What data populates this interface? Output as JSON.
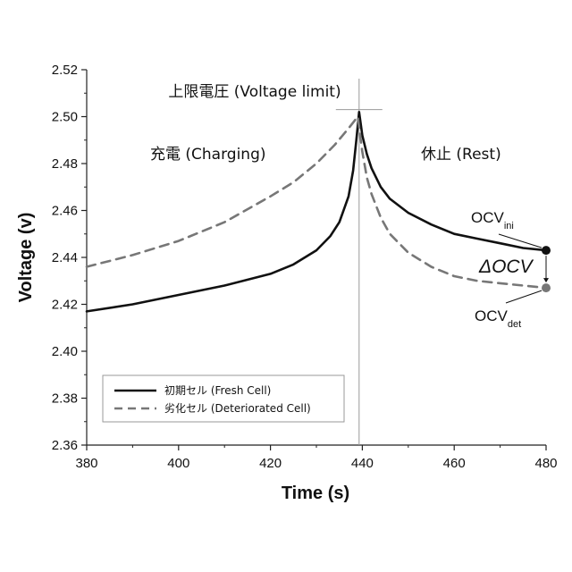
{
  "chart_data": {
    "type": "line",
    "xlabel": "Time (s)",
    "ylabel": "Voltage (v)",
    "xlim": [
      380,
      480
    ],
    "ylim": [
      2.36,
      2.52
    ],
    "xticks": [
      380,
      400,
      420,
      440,
      460,
      480
    ],
    "yticks": [
      2.36,
      2.38,
      2.4,
      2.42,
      2.44,
      2.46,
      2.48,
      2.5,
      2.52
    ],
    "legend_position": "bottom-left",
    "grid": false,
    "series": [
      {
        "name": "初期セル (Fresh Cell)",
        "style": "solid",
        "color": "#111111",
        "x": [
          380,
          390,
          400,
          410,
          420,
          425,
          430,
          433,
          435,
          437,
          438,
          438.7,
          439.3,
          440,
          441,
          442,
          444,
          446,
          450,
          455,
          460,
          465,
          470,
          475,
          480
        ],
        "y": [
          2.417,
          2.42,
          2.424,
          2.428,
          2.433,
          2.437,
          2.443,
          2.449,
          2.455,
          2.466,
          2.477,
          2.49,
          2.502,
          2.492,
          2.484,
          2.478,
          2.47,
          2.465,
          2.459,
          2.454,
          2.45,
          2.448,
          2.446,
          2.444,
          2.443
        ]
      },
      {
        "name": "劣化セル (Deteriorated Cell)",
        "style": "dashed",
        "color": "#777777",
        "x": [
          380,
          390,
          400,
          410,
          420,
          425,
          430,
          434,
          437,
          439,
          440,
          441,
          442,
          444,
          446,
          450,
          455,
          460,
          465,
          470,
          475,
          480
        ],
        "y": [
          2.436,
          2.441,
          2.447,
          2.455,
          2.466,
          2.472,
          2.48,
          2.488,
          2.495,
          2.5,
          2.485,
          2.474,
          2.467,
          2.457,
          2.45,
          2.442,
          2.436,
          2.432,
          2.43,
          2.429,
          2.428,
          2.427
        ]
      }
    ],
    "annotations": {
      "voltage_limit": "上限電圧 (Voltage limit)",
      "charging": "充電 (Charging)",
      "rest": "休止 (Rest)",
      "ocv_ini_main": "OCV",
      "ocv_ini_sub": "ini",
      "ocv_det_main": "OCV",
      "ocv_det_sub": "det",
      "delta_ocv": "ΔOCV"
    },
    "markers": {
      "divider_x": 439.3,
      "ocv_ini": [
        480,
        2.443
      ],
      "ocv_det": [
        480,
        2.427
      ]
    }
  }
}
